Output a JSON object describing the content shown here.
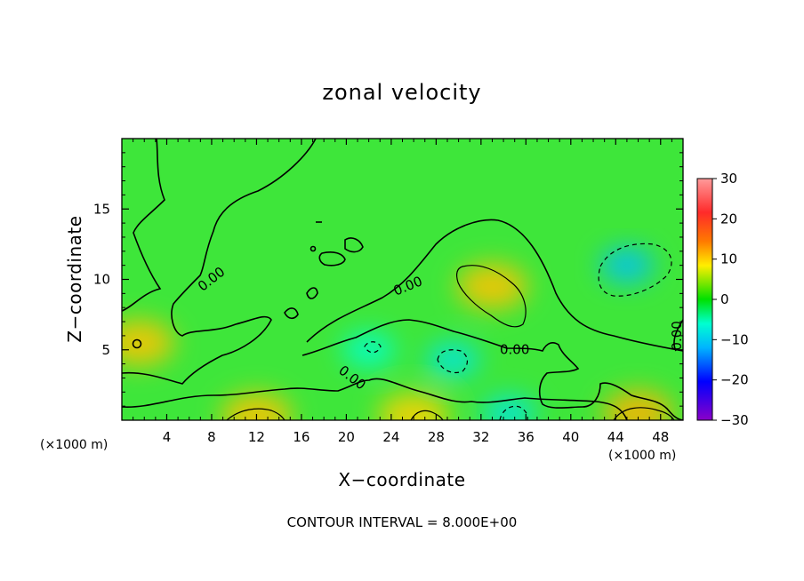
{
  "chart_data": {
    "type": "heatmap",
    "title": "zonal velocity",
    "xlabel": "X−coordinate",
    "ylabel": "Z−coordinate",
    "x_unit": "(×1000 m)",
    "y_unit": "(×1000 m)",
    "xlim": [
      0,
      50
    ],
    "ylim": [
      0,
      20
    ],
    "x_ticks": [
      4,
      8,
      12,
      16,
      20,
      24,
      28,
      32,
      36,
      40,
      44,
      48
    ],
    "y_ticks": [
      5,
      10,
      15
    ],
    "colorbar": {
      "range": [
        -30,
        30
      ],
      "ticks": [
        "30",
        "20",
        "10",
        "0",
        "−10",
        "−20",
        "−30"
      ]
    },
    "contour_labels": [
      "0.00",
      "0.00",
      "0.00",
      "0.00",
      "0.00"
    ],
    "footer": "CONTOUR INTERVAL = 8.000E+00",
    "features": [
      {
        "kind": "max",
        "x": 33,
        "z": 9.5,
        "value": 9
      },
      {
        "kind": "max",
        "x": 46,
        "z": 0.5,
        "value": 10
      },
      {
        "kind": "max",
        "x": 12,
        "z": 0.3,
        "value": 9
      },
      {
        "kind": "max",
        "x": 26,
        "z": 0.3,
        "value": 8
      },
      {
        "kind": "max",
        "x": 1.5,
        "z": 5.5,
        "value": 9
      },
      {
        "kind": "min",
        "x": 45,
        "z": 11,
        "value": -9
      },
      {
        "kind": "min",
        "x": 29.5,
        "z": 4.3,
        "value": -6
      },
      {
        "kind": "min",
        "x": 34.5,
        "z": 0.5,
        "value": -6
      },
      {
        "kind": "min",
        "x": 22,
        "z": 5.0,
        "value": -4
      }
    ]
  }
}
